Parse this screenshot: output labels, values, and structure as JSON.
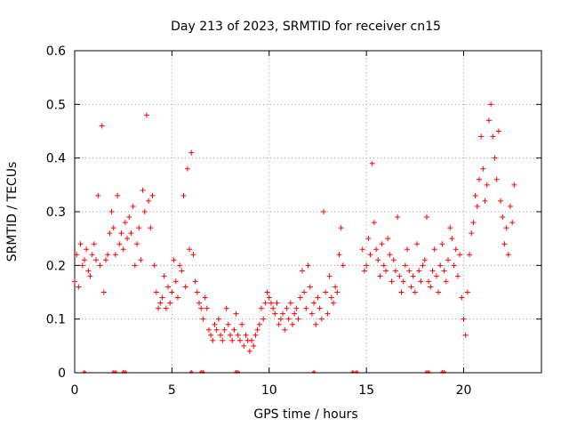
{
  "chart_data": {
    "type": "scatter",
    "title": "Day 213 of 2023, SRMTID for receiver cn15",
    "xlabel": "GPS time / hours",
    "ylabel": "SRMTID / TECUs",
    "xlim": [
      0,
      24
    ],
    "ylim": [
      0,
      0.6
    ],
    "x_ticks": [
      0,
      5,
      10,
      15,
      20
    ],
    "x_tick_labels": [
      "0",
      "5",
      "10",
      "15",
      "20"
    ],
    "y_ticks": [
      0,
      0.1,
      0.2,
      0.3,
      0.4,
      0.5,
      0.6
    ],
    "y_tick_labels": [
      "0",
      "0.1",
      "0.2",
      "0.3",
      "0.4",
      "0.5",
      "0.6"
    ],
    "grid": true,
    "marker": "+",
    "color": "#ff0000",
    "series": [
      {
        "name": "SRMTID",
        "x": [
          0.0,
          0.1,
          0.2,
          0.3,
          0.4,
          0.5,
          0.6,
          0.7,
          0.8,
          0.9,
          1.0,
          1.1,
          1.2,
          1.3,
          1.4,
          1.5,
          1.6,
          1.7,
          1.8,
          1.9,
          2.0,
          2.1,
          2.2,
          2.3,
          2.4,
          2.5,
          2.6,
          2.7,
          2.8,
          2.9,
          3.0,
          3.1,
          3.2,
          3.3,
          3.4,
          3.5,
          3.6,
          3.7,
          3.8,
          3.9,
          4.0,
          4.1,
          4.2,
          4.3,
          4.4,
          4.5,
          4.6,
          4.7,
          4.8,
          4.9,
          5.0,
          5.1,
          5.2,
          5.3,
          5.4,
          5.5,
          5.6,
          5.7,
          5.8,
          5.9,
          6.0,
          6.1,
          6.2,
          6.3,
          6.4,
          6.5,
          6.6,
          6.7,
          6.8,
          6.9,
          7.0,
          7.1,
          7.2,
          7.3,
          7.4,
          7.5,
          7.6,
          7.7,
          7.8,
          7.9,
          8.0,
          8.1,
          8.2,
          8.3,
          8.4,
          8.5,
          8.6,
          8.7,
          8.8,
          8.9,
          9.0,
          9.1,
          9.2,
          9.3,
          9.4,
          9.5,
          9.6,
          9.7,
          9.8,
          9.9,
          10.0,
          10.1,
          10.2,
          10.3,
          10.4,
          10.5,
          10.6,
          10.7,
          10.8,
          10.9,
          11.0,
          11.1,
          11.2,
          11.3,
          11.4,
          11.5,
          11.6,
          11.7,
          11.8,
          11.9,
          12.0,
          12.1,
          12.2,
          12.3,
          12.4,
          12.5,
          12.6,
          12.7,
          12.8,
          12.9,
          13.0,
          13.1,
          13.2,
          13.3,
          13.4,
          13.5,
          13.6,
          13.7,
          13.8,
          14.8,
          14.9,
          15.0,
          15.1,
          15.2,
          15.3,
          15.4,
          15.5,
          15.6,
          15.7,
          15.8,
          15.9,
          16.0,
          16.1,
          16.2,
          16.3,
          16.4,
          16.5,
          16.6,
          16.7,
          16.8,
          16.9,
          17.0,
          17.1,
          17.2,
          17.3,
          17.4,
          17.5,
          17.6,
          17.7,
          17.8,
          17.9,
          18.0,
          18.1,
          18.2,
          18.3,
          18.4,
          18.5,
          18.6,
          18.7,
          18.8,
          18.9,
          19.0,
          19.1,
          19.2,
          19.3,
          19.4,
          19.5,
          19.6,
          19.7,
          19.8,
          19.9,
          20.0,
          20.1,
          20.2,
          20.3,
          20.4,
          20.5,
          20.6,
          20.7,
          20.8,
          20.9,
          21.0,
          21.1,
          21.2,
          21.3,
          21.4,
          21.5,
          21.6,
          21.7,
          21.8,
          21.9,
          22.0,
          22.1,
          22.2,
          22.3,
          22.4,
          22.5,
          22.6
        ],
        "y": [
          0.17,
          0.22,
          0.16,
          0.24,
          0.2,
          0.21,
          0.23,
          0.19,
          0.18,
          0.22,
          0.24,
          0.21,
          0.33,
          0.2,
          0.46,
          0.15,
          0.21,
          0.22,
          0.26,
          0.3,
          0.27,
          0.22,
          0.33,
          0.24,
          0.26,
          0.23,
          0.28,
          0.25,
          0.29,
          0.26,
          0.31,
          0.2,
          0.24,
          0.27,
          0.21,
          0.34,
          0.3,
          0.48,
          0.32,
          0.27,
          0.33,
          0.2,
          0.15,
          0.12,
          0.13,
          0.14,
          0.18,
          0.12,
          0.16,
          0.13,
          0.15,
          0.21,
          0.17,
          0.14,
          0.2,
          0.19,
          0.33,
          0.16,
          0.38,
          0.23,
          0.41,
          0.22,
          0.17,
          0.15,
          0.13,
          0.12,
          0.1,
          0.14,
          0.12,
          0.08,
          0.07,
          0.06,
          0.09,
          0.08,
          0.1,
          0.07,
          0.06,
          0.08,
          0.12,
          0.09,
          0.07,
          0.06,
          0.08,
          0.11,
          0.07,
          0.06,
          0.09,
          0.05,
          0.07,
          0.06,
          0.04,
          0.06,
          0.05,
          0.07,
          0.08,
          0.09,
          0.12,
          0.1,
          0.13,
          0.15,
          0.14,
          0.13,
          0.12,
          0.11,
          0.13,
          0.09,
          0.1,
          0.11,
          0.08,
          0.12,
          0.1,
          0.13,
          0.09,
          0.11,
          0.12,
          0.1,
          0.14,
          0.19,
          0.15,
          0.12,
          0.2,
          0.16,
          0.11,
          0.13,
          0.09,
          0.14,
          0.12,
          0.1,
          0.3,
          0.15,
          0.11,
          0.18,
          0.14,
          0.13,
          0.16,
          0.15,
          0.22,
          0.27,
          0.2,
          0.23,
          0.19,
          0.2,
          0.25,
          0.22,
          0.39,
          0.28,
          0.23,
          0.21,
          0.18,
          0.24,
          0.2,
          0.19,
          0.25,
          0.22,
          0.17,
          0.21,
          0.19,
          0.29,
          0.18,
          0.15,
          0.17,
          0.2,
          0.23,
          0.19,
          0.16,
          0.18,
          0.15,
          0.24,
          0.19,
          0.17,
          0.2,
          0.21,
          0.29,
          0.17,
          0.16,
          0.19,
          0.23,
          0.18,
          0.15,
          0.2,
          0.24,
          0.19,
          0.17,
          0.21,
          0.27,
          0.25,
          0.2,
          0.23,
          0.18,
          0.22,
          0.14,
          0.1,
          0.07,
          0.15,
          0.22,
          0.26,
          0.28,
          0.33,
          0.31,
          0.36,
          0.44,
          0.38,
          0.32,
          0.35,
          0.47,
          0.5,
          0.44,
          0.4,
          0.36,
          0.45,
          0.32,
          0.29,
          0.24,
          0.27,
          0.22,
          0.31,
          0.28,
          0.35
        ]
      }
    ],
    "ground_ticks_x": [
      0.5,
      2.0,
      2.1,
      2.5,
      2.6,
      6.0,
      6.5,
      6.6,
      8.3,
      8.4,
      12.3,
      14.3,
      14.5,
      18.1,
      18.2,
      18.9,
      19.0
    ]
  }
}
